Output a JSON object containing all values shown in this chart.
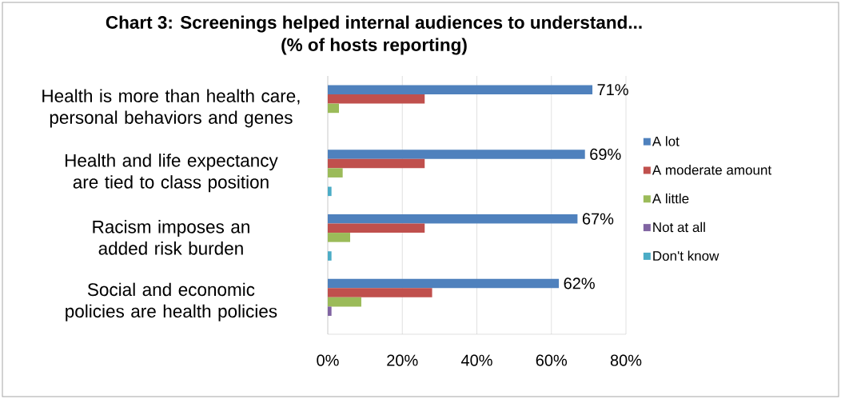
{
  "chart_data": {
    "type": "bar",
    "orientation": "horizontal",
    "title": "Chart 3: Screenings helped internal audiences to understand...",
    "subtitle": "(% of hosts reporting)",
    "categories": [
      "Health is more than health care, personal behaviors and genes",
      "Health and life expectancy are tied to class position",
      "Racism imposes an added risk burden",
      "Social and economic policies are health policies"
    ],
    "series": [
      {
        "name": "A lot",
        "color": "#4f81bd",
        "values": [
          71,
          69,
          67,
          62
        ],
        "value_labels": [
          "71%",
          "69%",
          "67%",
          "62%"
        ]
      },
      {
        "name": "A moderate amount",
        "color": "#c0504d",
        "values": [
          26,
          26,
          26,
          28
        ]
      },
      {
        "name": "A little",
        "color": "#9bbb59",
        "values": [
          3,
          4,
          6,
          9
        ]
      },
      {
        "name": "Not at all",
        "color": "#8064a2",
        "values": [
          0,
          0,
          0,
          1
        ]
      },
      {
        "name": "Don't know",
        "color": "#4bacc6",
        "values": [
          0,
          1,
          1,
          0
        ]
      }
    ],
    "xlim": [
      0,
      80
    ],
    "xticks": [
      {
        "value": 0,
        "label": "0%"
      },
      {
        "value": 20,
        "label": "20%"
      },
      {
        "value": 40,
        "label": "40%"
      },
      {
        "value": 60,
        "label": "60%"
      },
      {
        "value": 80,
        "label": "80%"
      }
    ],
    "grid": "x",
    "legend": "right"
  }
}
